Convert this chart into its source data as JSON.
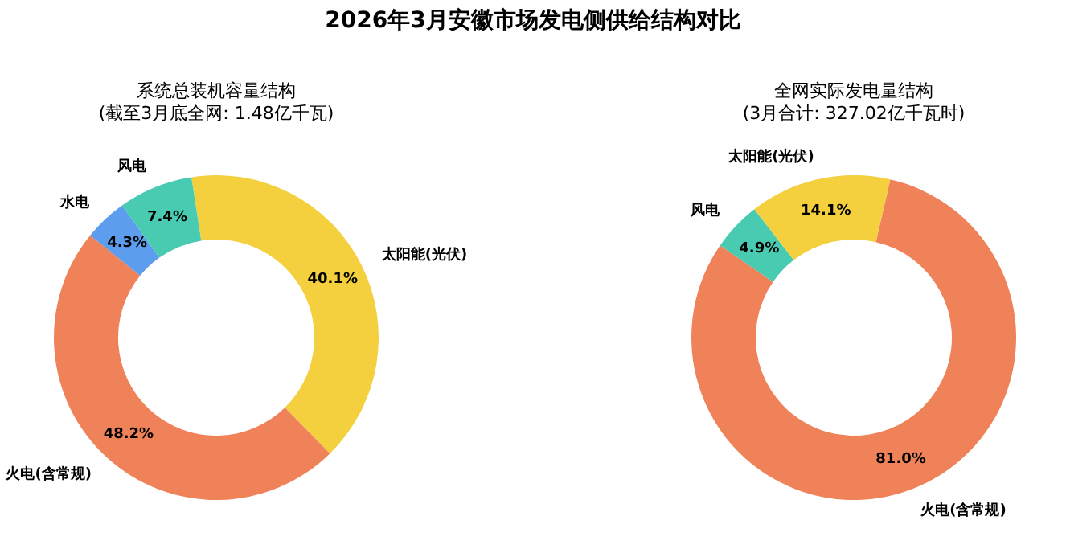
{
  "chart_data": [
    {
      "type": "donut",
      "title": "2026年3月安徽市场发电侧供给结构对比",
      "subtitle": "系统总装机容量结构\n(截至3月底全网: 1.48亿千瓦)",
      "categories": [
        "太阳能(光伏)",
        "火电(含常规)",
        "水电",
        "风电"
      ],
      "values": [
        40.1,
        48.2,
        4.3,
        7.4
      ],
      "colors": [
        "#f4d03f",
        "#f0825a",
        "#5d9ded",
        "#48cbb0"
      ],
      "value_labels": [
        "40.1%",
        "48.2%",
        "4.3%",
        "7.4%"
      ]
    },
    {
      "type": "donut",
      "subtitle": "全网实际发电量结构\n(3月合计: 327.02亿千瓦时)",
      "categories": [
        "火电(含常规)",
        "风电",
        "太阳能(光伏)"
      ],
      "values": [
        81.0,
        4.9,
        14.1
      ],
      "colors": [
        "#f0825a",
        "#48cbb0",
        "#f4d03f"
      ],
      "value_labels": [
        "81.0%",
        "4.9%",
        "14.1%"
      ]
    }
  ]
}
